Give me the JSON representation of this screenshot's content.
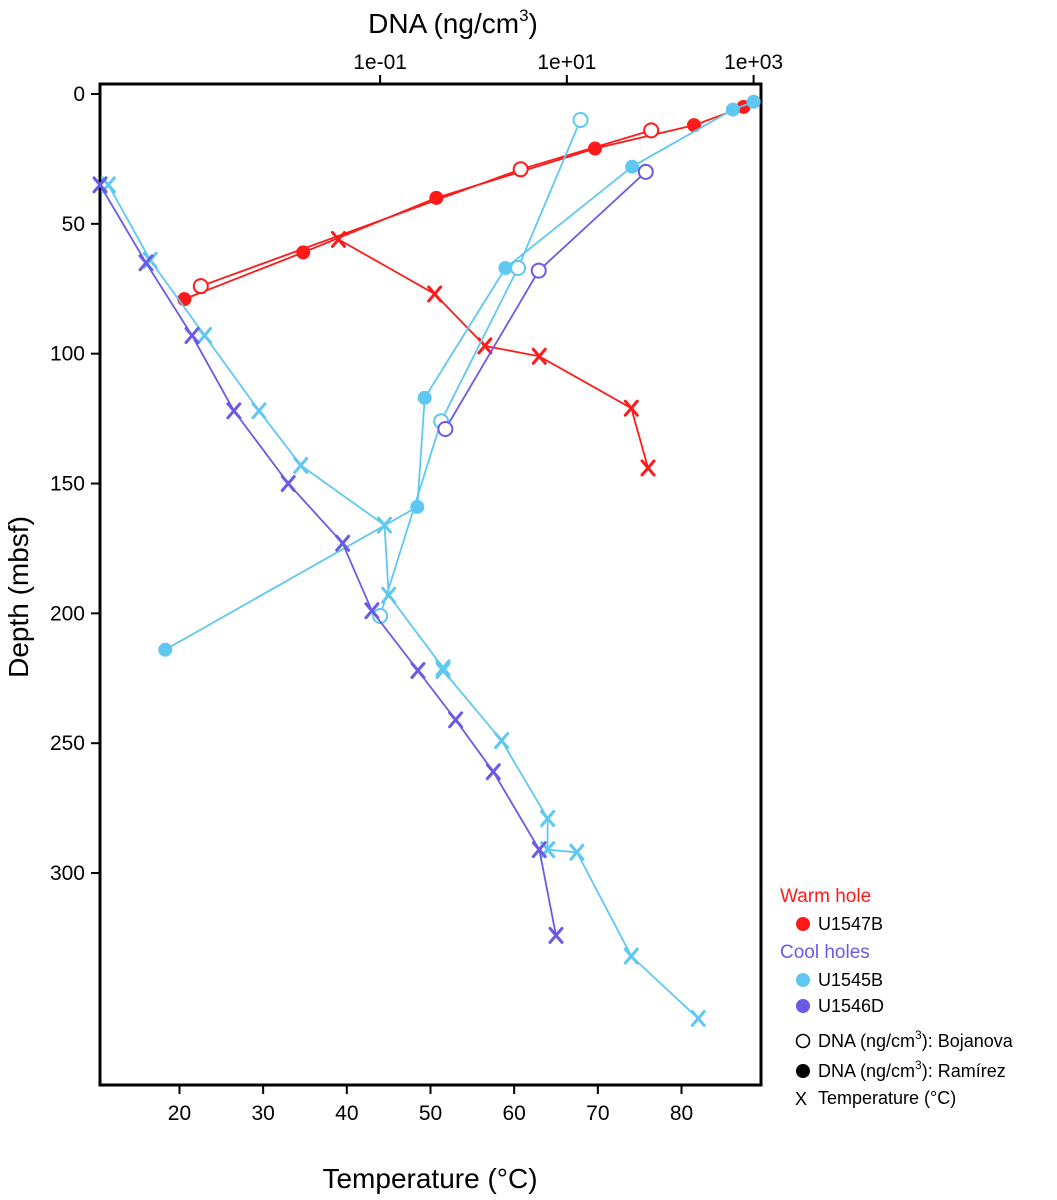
{
  "chart_data": {
    "type": "scatter",
    "top_axis": {
      "label": "DNA (ng/cm",
      "label_sup": "3",
      "label_close": ")",
      "scale": "log10",
      "range": [
        0.0001,
        1200
      ],
      "ticks": [
        0.1,
        10,
        1000
      ],
      "tick_labels": [
        "1e-01",
        "1e+01",
        "1e+03"
      ]
    },
    "bottom_axis": {
      "label": "Temperature (°C)",
      "range": [
        10.5,
        89.5
      ],
      "ticks": [
        20,
        30,
        40,
        50,
        60,
        70,
        80
      ],
      "tick_labels": [
        "20",
        "30",
        "40",
        "50",
        "60",
        "70",
        "80"
      ]
    },
    "y_axis": {
      "label": "Depth (mbsf)",
      "range": [
        0,
        372
      ],
      "inverted": true,
      "ticks": [
        0,
        50,
        100,
        150,
        200,
        250,
        300
      ],
      "tick_labels": [
        "0",
        "50",
        "100",
        "150",
        "200",
        "250",
        "300"
      ]
    },
    "colors": {
      "U1547B": "#ff1a1a",
      "U1545B": "#5ec8f2",
      "U1546D": "#6a5ae8"
    },
    "series": [
      {
        "name": "U1547B DNA Ramírez",
        "hole": "U1547B",
        "kind": "dna",
        "marker": "filled",
        "points": [
          [
            780,
            5
          ],
          [
            230,
            12
          ],
          [
            20,
            21
          ],
          [
            0.4,
            40
          ],
          [
            0.015,
            61
          ],
          [
            0.0008,
            79
          ]
        ]
      },
      {
        "name": "U1547B DNA Bojanova",
        "hole": "U1547B",
        "kind": "dna",
        "marker": "open",
        "points": [
          [
            80,
            14
          ],
          [
            3.2,
            29
          ],
          [
            0.0012,
            74
          ]
        ]
      },
      {
        "name": "U1547B Temperature",
        "hole": "U1547B",
        "kind": "temp",
        "marker": "x",
        "points": [
          [
            39,
            56
          ],
          [
            50.5,
            77
          ],
          [
            56.5,
            97
          ],
          [
            63,
            101
          ],
          [
            74,
            121
          ],
          [
            76,
            144
          ]
        ]
      },
      {
        "name": "U1545B DNA Ramírez",
        "hole": "U1545B",
        "kind": "dna",
        "marker": "filled",
        "points": [
          [
            1000,
            3
          ],
          [
            600,
            6
          ],
          [
            50,
            28
          ],
          [
            2.2,
            67
          ],
          [
            0.3,
            117
          ],
          [
            0.25,
            159
          ],
          [
            0.0005,
            214
          ]
        ]
      },
      {
        "name": "U1545B DNA Bojanova",
        "hole": "U1545B",
        "kind": "dna",
        "marker": "open",
        "points": [
          [
            14,
            10
          ],
          [
            3,
            67
          ],
          [
            0.45,
            126
          ],
          [
            0.1,
            201
          ]
        ]
      },
      {
        "name": "U1545B Temperature",
        "hole": "U1545B",
        "kind": "temp",
        "marker": "x",
        "points": [
          [
            11.5,
            35
          ],
          [
            16.5,
            64
          ],
          [
            23,
            93
          ],
          [
            29.5,
            122
          ],
          [
            34.5,
            143
          ],
          [
            44.5,
            166
          ],
          [
            45,
            193
          ],
          [
            51.5,
            221
          ],
          [
            51.5,
            222
          ],
          [
            58.5,
            249
          ],
          [
            64,
            279
          ],
          [
            64,
            291
          ],
          [
            67.5,
            292
          ],
          [
            74,
            332
          ],
          [
            82,
            356
          ]
        ]
      },
      {
        "name": "U1546D DNA Bojanova",
        "hole": "U1546D",
        "kind": "dna",
        "marker": "open",
        "points": [
          [
            70,
            30
          ],
          [
            5,
            68
          ],
          [
            0.5,
            129
          ]
        ]
      },
      {
        "name": "U1546D Temperature",
        "hole": "U1546D",
        "kind": "temp",
        "marker": "x",
        "points": [
          [
            10.5,
            35
          ],
          [
            16,
            65
          ],
          [
            21.5,
            93
          ],
          [
            26.5,
            122
          ],
          [
            33,
            150
          ],
          [
            39.5,
            173
          ],
          [
            43,
            199
          ],
          [
            48.5,
            222
          ],
          [
            53,
            241
          ],
          [
            57.5,
            261
          ],
          [
            63,
            291
          ],
          [
            65,
            324
          ]
        ]
      }
    ],
    "legend": {
      "position": "bottom-right",
      "warm_header": "Warm hole",
      "cool_header": "Cool holes",
      "hole_entries": [
        "U1547B",
        "U1545B",
        "U1546D"
      ],
      "marker_entries": [
        {
          "marker": "open",
          "text": "DNA (ng/cm",
          "sup": "3",
          "rest": "): Bojanova"
        },
        {
          "marker": "filled",
          "text": "DNA (ng/cm",
          "sup": "3",
          "rest": "): Ramírez"
        },
        {
          "marker": "x",
          "text": "Temperature (°C)",
          "sup": "",
          "rest": ""
        }
      ]
    }
  }
}
